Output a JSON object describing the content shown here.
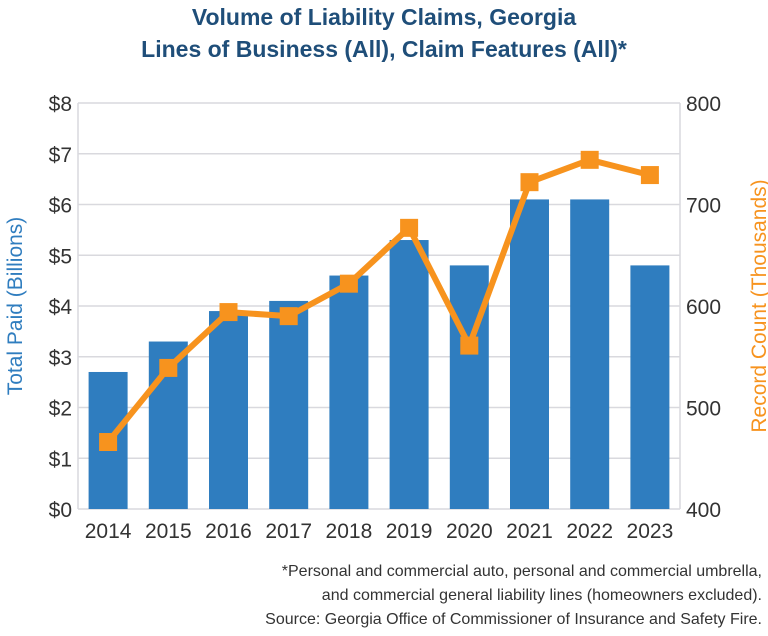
{
  "chart_data": {
    "type": "bar+line",
    "title_line1": "Volume of Liability Claims, Georgia",
    "title_line2": "Lines of Business (All), Claim Features (All)*",
    "categories": [
      "2014",
      "2015",
      "2016",
      "2017",
      "2018",
      "2019",
      "2020",
      "2021",
      "2022",
      "2023"
    ],
    "series": [
      {
        "name": "Total Paid (Billions)",
        "type": "bar",
        "axis": "left",
        "color": "#2f7dbf",
        "values": [
          2.7,
          3.3,
          3.9,
          4.1,
          4.6,
          5.3,
          4.8,
          6.1,
          6.1,
          4.8
        ]
      },
      {
        "name": "Record Count (Thousands)",
        "type": "line",
        "axis": "right",
        "color": "#f7931e",
        "values": [
          466,
          539,
          594,
          590,
          622,
          677,
          561,
          722,
          744,
          729
        ]
      }
    ],
    "ylabel": "Total Paid (Billions)",
    "y2label": "Record Count (Thousands)",
    "ylim": [
      0,
      8
    ],
    "y2lim": [
      400,
      800
    ],
    "yticks": [
      "$0",
      "$1",
      "$2",
      "$3",
      "$4",
      "$5",
      "$6",
      "$7",
      "$8"
    ],
    "y2ticks": [
      "400",
      "500",
      "600",
      "700",
      "800"
    ],
    "grid": true
  },
  "footnote": {
    "line1": "*Personal and commercial auto, personal and commercial umbrella,",
    "line2": "and commercial general liability lines (homeowners excluded).",
    "line3": "Source: Georgia Office of Commissioner of Insurance and Safety Fire."
  }
}
